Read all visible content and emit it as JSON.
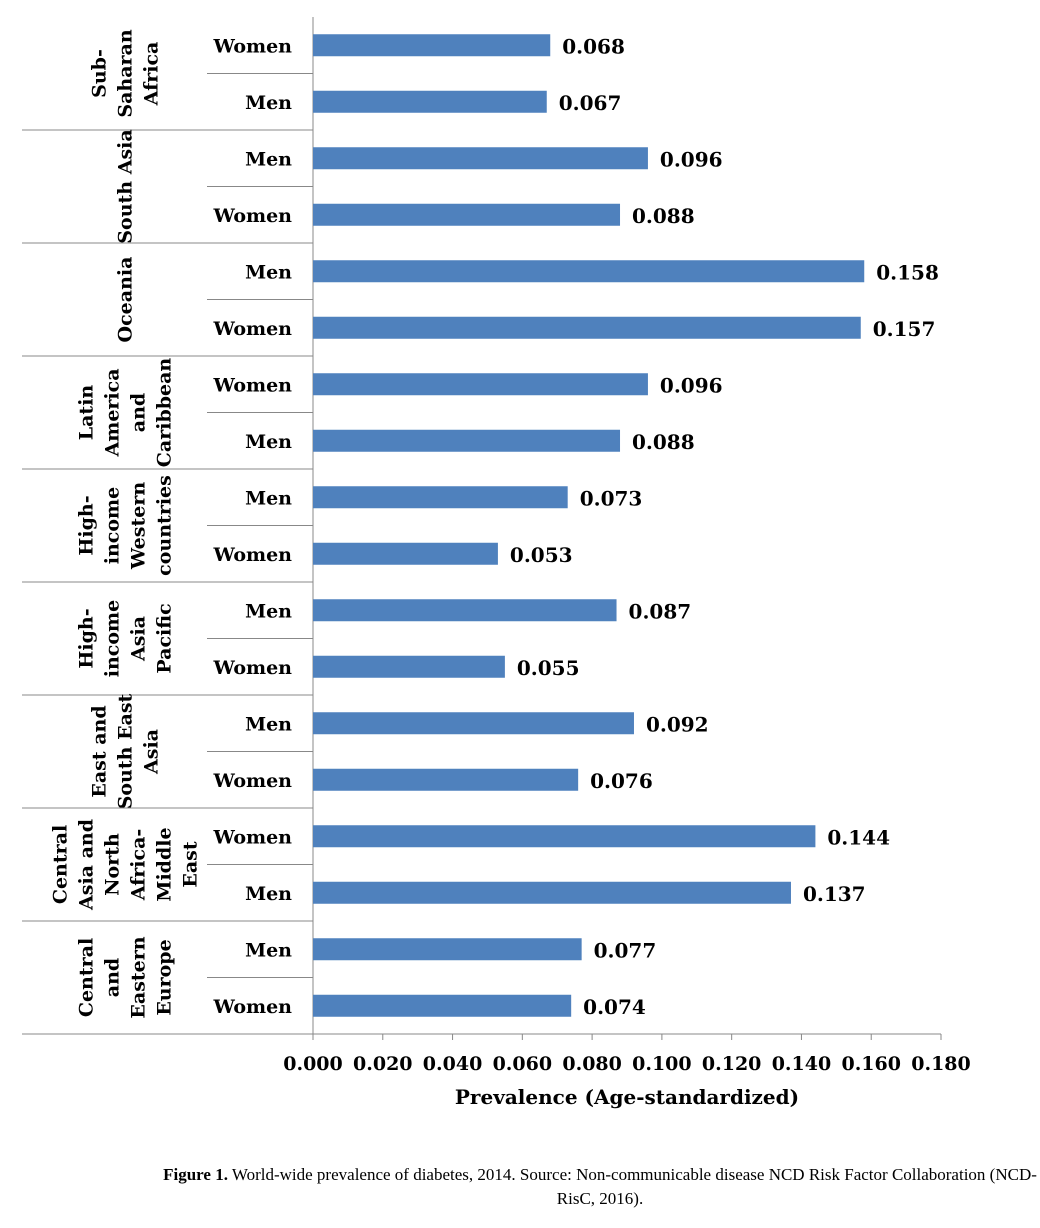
{
  "chart_data": {
    "type": "bar",
    "orientation": "horizontal",
    "xlabel": "Prevalence (Age-standardized)",
    "xlim": [
      0,
      0.18
    ],
    "xticks": [
      "0.000",
      "0.020",
      "0.040",
      "0.060",
      "0.080",
      "0.100",
      "0.120",
      "0.140",
      "0.160",
      "0.180"
    ],
    "bar_color": "#4f81bd",
    "groups": [
      {
        "name": "Sub-\nSaharan\nAfrica",
        "rows": [
          {
            "label": "Women",
            "value": 0.068,
            "value_label": "0.068"
          },
          {
            "label": "Men",
            "value": 0.067,
            "value_label": "0.067"
          }
        ]
      },
      {
        "name": "South Asia",
        "rows": [
          {
            "label": "Men",
            "value": 0.096,
            "value_label": "0.096"
          },
          {
            "label": "Women",
            "value": 0.088,
            "value_label": "0.088"
          }
        ]
      },
      {
        "name": "Oceania",
        "rows": [
          {
            "label": "Men",
            "value": 0.158,
            "value_label": "0.158"
          },
          {
            "label": "Women",
            "value": 0.157,
            "value_label": "0.157"
          }
        ]
      },
      {
        "name": "Latin\nAmerica\nand\nCaribbean",
        "rows": [
          {
            "label": "Women",
            "value": 0.096,
            "value_label": "0.096"
          },
          {
            "label": "Men",
            "value": 0.088,
            "value_label": "0.088"
          }
        ]
      },
      {
        "name": "High-\nincome\nWestern\ncountries",
        "rows": [
          {
            "label": "Men",
            "value": 0.073,
            "value_label": "0.073"
          },
          {
            "label": "Women",
            "value": 0.053,
            "value_label": "0.053"
          }
        ]
      },
      {
        "name": "High-\nincome\nAsia\nPacific",
        "rows": [
          {
            "label": "Men",
            "value": 0.087,
            "value_label": "0.087"
          },
          {
            "label": "Women",
            "value": 0.055,
            "value_label": "0.055"
          }
        ]
      },
      {
        "name": "East and\nSouth East\nAsia",
        "rows": [
          {
            "label": "Men",
            "value": 0.092,
            "value_label": "0.092"
          },
          {
            "label": "Women",
            "value": 0.076,
            "value_label": "0.076"
          }
        ]
      },
      {
        "name": "Central\nAsia and\nNorth\nAfrica-\nMiddle\nEast",
        "rows": [
          {
            "label": "Women",
            "value": 0.144,
            "value_label": "0.144"
          },
          {
            "label": "Men",
            "value": 0.137,
            "value_label": "0.137"
          }
        ]
      },
      {
        "name": "Central\nand\nEastern\nEurope",
        "rows": [
          {
            "label": "Men",
            "value": 0.077,
            "value_label": "0.077"
          },
          {
            "label": "Women",
            "value": 0.074,
            "value_label": "0.074"
          }
        ]
      }
    ]
  },
  "caption": {
    "prefix": "Figure 1.",
    "text": " World-wide prevalence of diabetes, 2014. Source: Non-communicable disease NCD Risk Factor Collaboration (NCD-RisC, 2016)."
  }
}
